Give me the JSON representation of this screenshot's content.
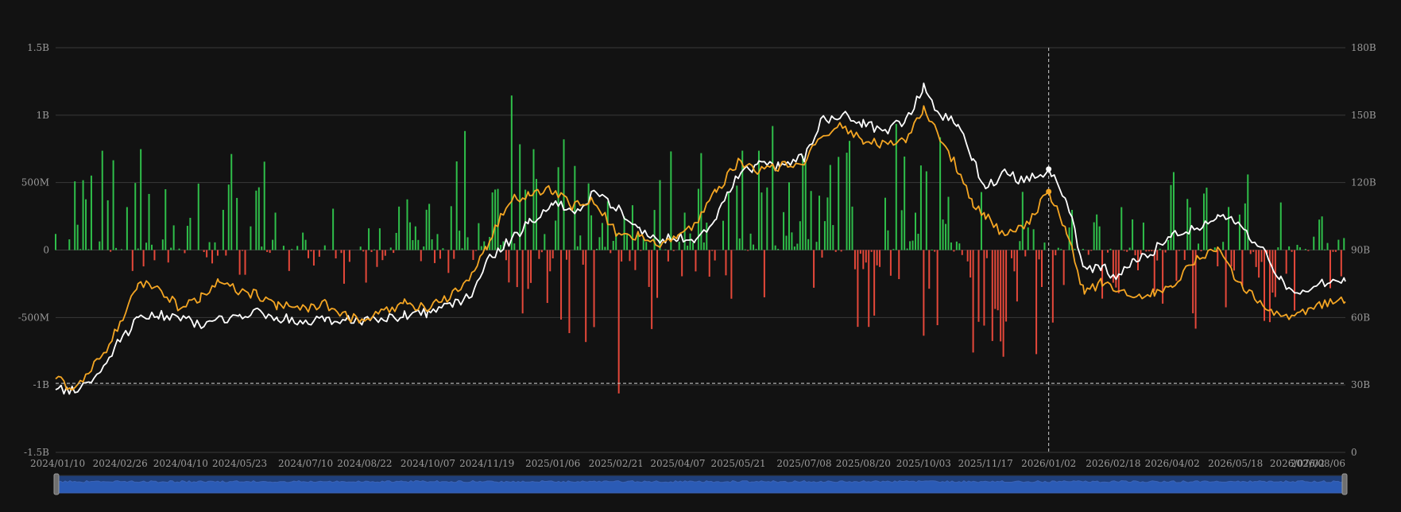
{
  "chart_data": {
    "type": "bar+line",
    "colors": {
      "background": "#121212",
      "grid": "#3a3a3a",
      "positive_bar": "#2fbf4a",
      "negative_bar": "#e5483a",
      "line_primary": "#ffffff",
      "line_secondary": "#f5a623",
      "crosshair": "#cfcfcf",
      "zoom_fill": "#1f3f7a",
      "zoom_line": "#3c63b4",
      "label": "#9a9a9a"
    },
    "left_axis": {
      "range": [
        -1500000000,
        1500000000
      ],
      "ticks": [
        {
          "value": 1500000000,
          "label": "1.5B"
        },
        {
          "value": 1000000000,
          "label": "1B"
        },
        {
          "value": 500000000,
          "label": "500M"
        },
        {
          "value": 0,
          "label": "0"
        },
        {
          "value": -500000000,
          "label": "-500M"
        },
        {
          "value": -1000000000,
          "label": "-1B"
        },
        {
          "value": -1500000000,
          "label": "-1.5B"
        }
      ]
    },
    "right_axis": {
      "range": [
        0,
        180
      ],
      "ticks": [
        {
          "value": 180,
          "label": "180B"
        },
        {
          "value": 150,
          "label": "150B"
        },
        {
          "value": 120,
          "label": "120B"
        },
        {
          "value": 90,
          "label": "90B"
        },
        {
          "value": 60,
          "label": "60B"
        },
        {
          "value": 30,
          "label": "30B"
        },
        {
          "value": 0,
          "label": "0"
        }
      ]
    },
    "x_axis": {
      "start": "2024-01-10",
      "end": "2026-08-06",
      "tick_labels": [
        "2024/01/10",
        "2024/02/26",
        "2024/04/10",
        "2024/05/23",
        "2024/07/10",
        "2024/08/22",
        "2024/10/07",
        "2024/11/19",
        "2025/01/06",
        "2025/02/21",
        "2025/04/07",
        "2025/05/21",
        "2025/07/08",
        "2025/08/20",
        "2025/10/03",
        "2025/11/17",
        "2026/01/02",
        "2026/02/18",
        "2026/04/02",
        "2026/05/18",
        "2026/07/02",
        "2026/08/06"
      ]
    },
    "crosshair_date": "2026/01/02",
    "highlight_points": {
      "primary": 126,
      "secondary": 116
    },
    "bars": {
      "seed": 20240110,
      "envelope": [
        [
          "2024-01-10",
          0.35,
          0.2,
          650,
          -160
        ],
        [
          "2024-02-26",
          0.7,
          0.15,
          1050,
          -150
        ],
        [
          "2024-04-10",
          0.5,
          0.3,
          330,
          -300
        ],
        [
          "2024-05-23",
          0.55,
          0.35,
          880,
          -200
        ],
        [
          "2024-07-10",
          0.45,
          0.35,
          420,
          -250
        ],
        [
          "2024-08-22",
          0.4,
          0.4,
          200,
          -260
        ],
        [
          "2024-10-07",
          0.6,
          0.3,
          650,
          -200
        ],
        [
          "2024-11-19",
          0.75,
          0.25,
          1380,
          -370
        ],
        [
          "2025-01-06",
          0.65,
          0.4,
          1100,
          -620
        ],
        [
          "2025-02-21",
          0.5,
          0.55,
          470,
          -1130
        ],
        [
          "2025-04-07",
          0.55,
          0.35,
          820,
          -380
        ],
        [
          "2025-05-21",
          0.7,
          0.3,
          850,
          -600
        ],
        [
          "2025-07-08",
          0.8,
          0.25,
          1180,
          -250
        ],
        [
          "2025-08-20",
          0.55,
          0.45,
          700,
          -800
        ],
        [
          "2025-10-03",
          0.65,
          0.45,
          1150,
          -760
        ],
        [
          "2025-11-17",
          0.35,
          0.6,
          400,
          -900
        ],
        [
          "2026-01-02",
          0.5,
          0.6,
          840,
          -830
        ],
        [
          "2026-02-18",
          0.4,
          0.5,
          520,
          -600
        ],
        [
          "2026-04-02",
          0.55,
          0.45,
          650,
          -530
        ],
        [
          "2026-05-18",
          0.45,
          0.55,
          640,
          -730
        ],
        [
          "2026-07-02",
          0.5,
          0.5,
          260,
          -690
        ],
        [
          "2026-08-06",
          0.5,
          0.4,
          240,
          -200
        ]
      ]
    },
    "series": [
      {
        "color_key": "line_primary",
        "points": [
          [
            "2024-01-10",
            29
          ],
          [
            "2024-01-20",
            27
          ],
          [
            "2024-02-01",
            29
          ],
          [
            "2024-02-12",
            36
          ],
          [
            "2024-02-26",
            50
          ],
          [
            "2024-03-10",
            59
          ],
          [
            "2024-03-25",
            61
          ],
          [
            "2024-04-10",
            60
          ],
          [
            "2024-04-25",
            56
          ],
          [
            "2024-05-08",
            59
          ],
          [
            "2024-05-23",
            60
          ],
          [
            "2024-06-05",
            63
          ],
          [
            "2024-06-20",
            60
          ],
          [
            "2024-07-10",
            58
          ],
          [
            "2024-07-25",
            59
          ],
          [
            "2024-08-06",
            59
          ],
          [
            "2024-08-22",
            58
          ],
          [
            "2024-09-05",
            59
          ],
          [
            "2024-09-20",
            61
          ],
          [
            "2024-10-07",
            62
          ],
          [
            "2024-10-25",
            66
          ],
          [
            "2024-11-08",
            70
          ],
          [
            "2024-11-19",
            85
          ],
          [
            "2024-12-05",
            94
          ],
          [
            "2024-12-20",
            102
          ],
          [
            "2025-01-06",
            112
          ],
          [
            "2025-01-20",
            106
          ],
          [
            "2025-02-05",
            115
          ],
          [
            "2025-02-21",
            109
          ],
          [
            "2025-03-10",
            100
          ],
          [
            "2025-03-25",
            94
          ],
          [
            "2025-04-07",
            96
          ],
          [
            "2025-04-20",
            93
          ],
          [
            "2025-05-05",
            104
          ],
          [
            "2025-05-21",
            124
          ],
          [
            "2025-06-05",
            128
          ],
          [
            "2025-06-20",
            127
          ],
          [
            "2025-07-08",
            131
          ],
          [
            "2025-07-20",
            148
          ],
          [
            "2025-08-05",
            150
          ],
          [
            "2025-08-20",
            146
          ],
          [
            "2025-09-05",
            143
          ],
          [
            "2025-09-20",
            148
          ],
          [
            "2025-10-03",
            163
          ],
          [
            "2025-10-15",
            150
          ],
          [
            "2025-10-28",
            146
          ],
          [
            "2025-11-08",
            130
          ],
          [
            "2025-11-17",
            117
          ],
          [
            "2025-12-01",
            125
          ],
          [
            "2025-12-15",
            120
          ],
          [
            "2026-01-02",
            126
          ],
          [
            "2026-01-15",
            113
          ],
          [
            "2026-01-28",
            81
          ],
          [
            "2026-02-10",
            83
          ],
          [
            "2026-02-18",
            77
          ],
          [
            "2026-03-05",
            85
          ],
          [
            "2026-03-20",
            90
          ],
          [
            "2026-04-02",
            97
          ],
          [
            "2026-04-20",
            100
          ],
          [
            "2026-05-05",
            106
          ],
          [
            "2026-05-18",
            102
          ],
          [
            "2026-06-05",
            92
          ],
          [
            "2026-06-20",
            77
          ],
          [
            "2026-07-02",
            70
          ],
          [
            "2026-07-20",
            76
          ],
          [
            "2026-08-06",
            76
          ]
        ]
      },
      {
        "color_key": "line_secondary",
        "points": [
          [
            "2024-01-10",
            33
          ],
          [
            "2024-01-20",
            29
          ],
          [
            "2024-02-01",
            34
          ],
          [
            "2024-02-12",
            42
          ],
          [
            "2024-02-26",
            58
          ],
          [
            "2024-03-10",
            76
          ],
          [
            "2024-03-25",
            73
          ],
          [
            "2024-04-10",
            64
          ],
          [
            "2024-04-25",
            69
          ],
          [
            "2024-05-08",
            76
          ],
          [
            "2024-05-23",
            72
          ],
          [
            "2024-06-05",
            70
          ],
          [
            "2024-06-20",
            65
          ],
          [
            "2024-07-10",
            64
          ],
          [
            "2024-07-25",
            66
          ],
          [
            "2024-08-06",
            61
          ],
          [
            "2024-08-22",
            59
          ],
          [
            "2024-09-05",
            63
          ],
          [
            "2024-09-20",
            66
          ],
          [
            "2024-10-07",
            64
          ],
          [
            "2024-10-25",
            70
          ],
          [
            "2024-11-08",
            80
          ],
          [
            "2024-11-19",
            92
          ],
          [
            "2024-12-05",
            112
          ],
          [
            "2024-12-20",
            115
          ],
          [
            "2025-01-06",
            117
          ],
          [
            "2025-01-20",
            110
          ],
          [
            "2025-02-05",
            112
          ],
          [
            "2025-02-21",
            98
          ],
          [
            "2025-03-10",
            96
          ],
          [
            "2025-03-25",
            92
          ],
          [
            "2025-04-07",
            95
          ],
          [
            "2025-04-20",
            102
          ],
          [
            "2025-05-05",
            116
          ],
          [
            "2025-05-21",
            129
          ],
          [
            "2025-06-05",
            125
          ],
          [
            "2025-06-20",
            127
          ],
          [
            "2025-07-08",
            129
          ],
          [
            "2025-07-20",
            142
          ],
          [
            "2025-08-05",
            145
          ],
          [
            "2025-08-20",
            138
          ],
          [
            "2025-09-05",
            137
          ],
          [
            "2025-09-20",
            139
          ],
          [
            "2025-10-03",
            153
          ],
          [
            "2025-10-15",
            140
          ],
          [
            "2025-10-28",
            126
          ],
          [
            "2025-11-08",
            110
          ],
          [
            "2025-11-17",
            105
          ],
          [
            "2025-12-01",
            96
          ],
          [
            "2025-12-15",
            100
          ],
          [
            "2026-01-02",
            116
          ],
          [
            "2026-01-15",
            98
          ],
          [
            "2026-01-28",
            70
          ],
          [
            "2026-02-10",
            76
          ],
          [
            "2026-02-18",
            73
          ],
          [
            "2026-03-05",
            69
          ],
          [
            "2026-03-20",
            71
          ],
          [
            "2026-04-02",
            74
          ],
          [
            "2026-04-20",
            87
          ],
          [
            "2026-05-05",
            91
          ],
          [
            "2026-05-18",
            77
          ],
          [
            "2026-06-05",
            66
          ],
          [
            "2026-06-20",
            60
          ],
          [
            "2026-07-02",
            61
          ],
          [
            "2026-07-20",
            66
          ],
          [
            "2026-08-06",
            67
          ]
        ]
      }
    ]
  }
}
